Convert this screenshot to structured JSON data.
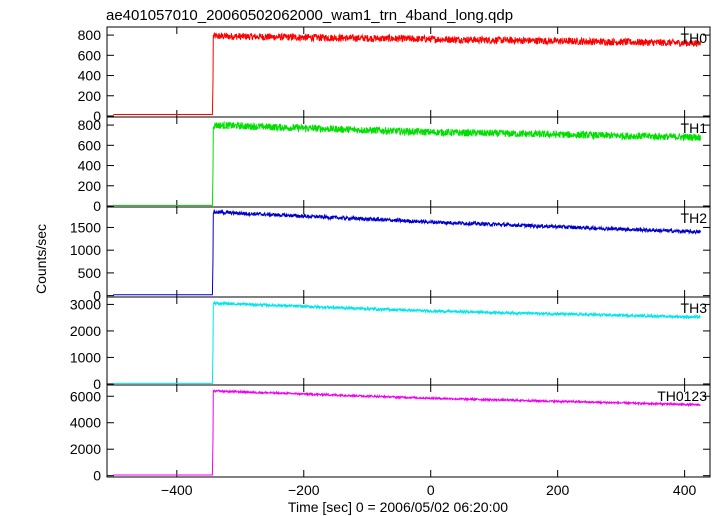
{
  "chart_data": {
    "type": "line",
    "title": "ae401057010_20060502062000_wam1_trn_4band_long.qdp",
    "xlabel": "Time [sec] 0 = 2006/05/02 06:20:00",
    "ylabel": "Counts/sec",
    "xlim": [
      -510,
      440
    ],
    "xticks": [
      -400,
      -200,
      0,
      200,
      400
    ],
    "xtick_labels": [
      "−400",
      "−200",
      "0",
      "200",
      "400"
    ],
    "grid": false,
    "panels": [
      {
        "name": "TH0",
        "color": "#ff0000",
        "ylim": [
          -10,
          880
        ],
        "yticks": [
          0,
          200,
          400,
          600,
          800
        ],
        "ytick_labels": [
          "0",
          "200",
          "400",
          "600",
          "800"
        ],
        "pre_level": 15,
        "onset_x": -343,
        "trend": [
          [
            -343,
            790
          ],
          [
            0,
            760
          ],
          [
            425,
            720
          ]
        ],
        "noise": 35
      },
      {
        "name": "TH1",
        "color": "#00e000",
        "ylim": [
          -10,
          880
        ],
        "yticks": [
          0,
          200,
          400,
          600,
          800
        ],
        "ytick_labels": [
          "0",
          "200",
          "400",
          "600",
          "800"
        ],
        "pre_level": 5,
        "onset_x": -343,
        "trend": [
          [
            -343,
            800
          ],
          [
            0,
            730
          ],
          [
            425,
            680
          ]
        ],
        "noise": 35
      },
      {
        "name": "TH2",
        "color": "#0000cc",
        "ylim": [
          -30,
          1950
        ],
        "yticks": [
          0,
          500,
          1000,
          1500
        ],
        "ytick_labels": [
          "0",
          "500",
          "1000",
          "1500"
        ],
        "pre_level": 20,
        "onset_x": -343,
        "trend": [
          [
            -343,
            1840
          ],
          [
            0,
            1620
          ],
          [
            425,
            1400
          ]
        ],
        "noise": 40
      },
      {
        "name": "TH3",
        "color": "#00e5ee",
        "ylim": [
          -40,
          3280
        ],
        "yticks": [
          0,
          1000,
          2000,
          3000
        ],
        "ytick_labels": [
          "0",
          "1000",
          "2000",
          "3000"
        ],
        "pre_level": 20,
        "onset_x": -343,
        "trend": [
          [
            -343,
            3050
          ],
          [
            0,
            2750
          ],
          [
            425,
            2520
          ]
        ],
        "noise": 50
      },
      {
        "name": "TH0123",
        "color": "#ee00ee",
        "ylim": [
          -100,
          6850
        ],
        "yticks": [
          0,
          2000,
          4000,
          6000
        ],
        "ytick_labels": [
          "0",
          "2000",
          "4000",
          "6000"
        ],
        "pre_level": 50,
        "onset_x": -343,
        "trend": [
          [
            -343,
            6400
          ],
          [
            0,
            5850
          ],
          [
            425,
            5350
          ]
        ],
        "noise": 70
      }
    ]
  }
}
